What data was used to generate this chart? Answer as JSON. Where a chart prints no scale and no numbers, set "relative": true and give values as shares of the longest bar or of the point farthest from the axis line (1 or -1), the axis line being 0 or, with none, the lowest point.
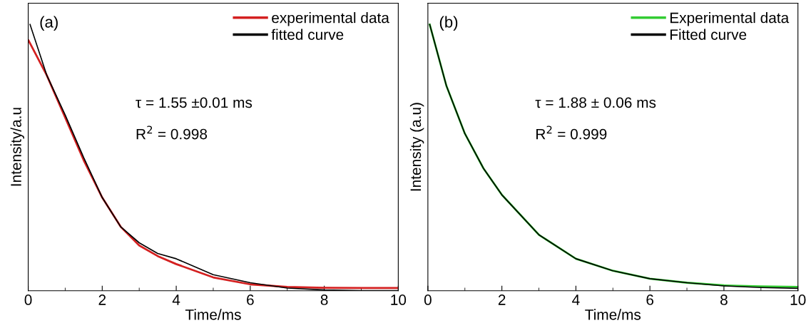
{
  "chart_data": [
    {
      "type": "line",
      "xlabel": "Time/ms",
      "ylabel": "Intensity/a.u",
      "relative": true,
      "xlim": [
        0,
        10
      ],
      "xticks": [
        0,
        {
          "value": 1,
          "label": null
        },
        2,
        {
          "value": 3,
          "label": null
        },
        4,
        {
          "value": 5,
          "label": null
        },
        6,
        {
          "value": 7,
          "label": null
        },
        8,
        {
          "value": 9,
          "label": null
        },
        10
      ],
      "annotations": [
        "(a)",
        "τ = 1.55 ±0.01 ms",
        "R$^{2}$ = 0.998"
      ],
      "legend": "top right",
      "grid": false,
      "series": [
        {
          "name": "experimental data",
          "color": "#d42020",
          "x": [
            0.01,
            0.5,
            1,
            1.5,
            2,
            2.5,
            3,
            3.5,
            4,
            5,
            6,
            7,
            8,
            9,
            10
          ],
          "values": [
            0.94,
            0.81,
            0.65,
            0.49,
            0.35,
            0.24,
            0.17,
            0.13,
            0.1,
            0.05,
            0.024,
            0.014,
            0.011,
            0.01,
            0.01
          ]
        },
        {
          "name": "fitted curve",
          "color": "#000000",
          "x": [
            0.05,
            0.5,
            1,
            1.5,
            2,
            2.5,
            3,
            3.5,
            4,
            5,
            6,
            7,
            8,
            9,
            10
          ],
          "values": [
            1.0,
            0.81,
            0.66,
            0.5,
            0.35,
            0.24,
            0.18,
            0.14,
            0.12,
            0.06,
            0.03,
            0.01,
            0.003,
            0,
            0
          ]
        }
      ]
    },
    {
      "type": "line",
      "xlabel": "Time/ms",
      "ylabel": "Intensity (a.u)",
      "relative": true,
      "xlim": [
        0,
        10
      ],
      "xticks": [
        0,
        {
          "value": 1,
          "label": null
        },
        2,
        {
          "value": 3,
          "label": null
        },
        4,
        {
          "value": 5,
          "label": null
        },
        6,
        {
          "value": 7,
          "label": null
        },
        8,
        {
          "value": 9,
          "label": null
        },
        10
      ],
      "annotations": [
        "(b)",
        "τ = 1.88 ± 0.06 ms",
        "R$^{2}$ = 0.999"
      ],
      "legend": "top right",
      "grid": false,
      "series": [
        {
          "name": "Experimental data",
          "color": "#33cc33",
          "x": [
            0.05,
            0.5,
            1,
            1.5,
            2,
            3,
            4,
            5,
            6,
            7,
            8,
            9,
            10
          ],
          "values": [
            1.0,
            0.77,
            0.59,
            0.46,
            0.36,
            0.21,
            0.12,
            0.075,
            0.045,
            0.03,
            0.02,
            0.016,
            0.014
          ]
        },
        {
          "name": "Fitted curve",
          "color": "#000000",
          "x": [
            0.05,
            0.5,
            1,
            1.5,
            2,
            3,
            4,
            5,
            6,
            7,
            8,
            9,
            10
          ],
          "values": [
            1.0,
            0.77,
            0.59,
            0.46,
            0.36,
            0.21,
            0.12,
            0.075,
            0.045,
            0.03,
            0.018,
            0.012,
            0.009
          ]
        }
      ]
    }
  ]
}
